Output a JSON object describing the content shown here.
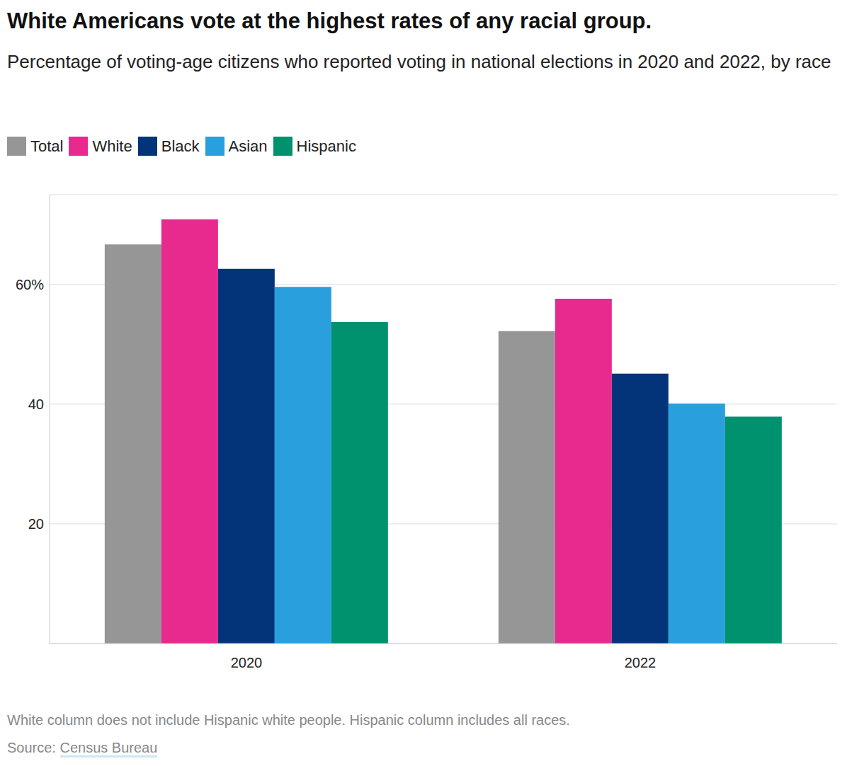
{
  "chart_data": {
    "type": "bar",
    "title": "White Americans vote at the highest rates of any racial group.",
    "subtitle": "Percentage of voting-age citizens who reported voting in national elections in 2020 and 2022, by race",
    "categories": [
      "2020",
      "2022"
    ],
    "series": [
      {
        "name": "Total",
        "color": "#969696",
        "values": [
          66.7,
          52.2
        ]
      },
      {
        "name": "White",
        "color": "#e8298e",
        "values": [
          70.9,
          57.6
        ]
      },
      {
        "name": "Black",
        "color": "#03347a",
        "values": [
          62.6,
          45.1
        ]
      },
      {
        "name": "Asian",
        "color": "#299fdd",
        "values": [
          59.6,
          40.1
        ]
      },
      {
        "name": "Hispanic",
        "color": "#00916e",
        "values": [
          53.7,
          37.9
        ]
      }
    ],
    "ylim": [
      0,
      75
    ],
    "yticks": [
      20,
      40,
      {
        "value": 60,
        "label": "60%"
      }
    ],
    "grid": true,
    "legend": "top-left",
    "footnote": "White column does not include Hispanic white people. Hispanic column includes all races.",
    "source": {
      "label": "Source:",
      "text": "Census Bureau"
    }
  }
}
